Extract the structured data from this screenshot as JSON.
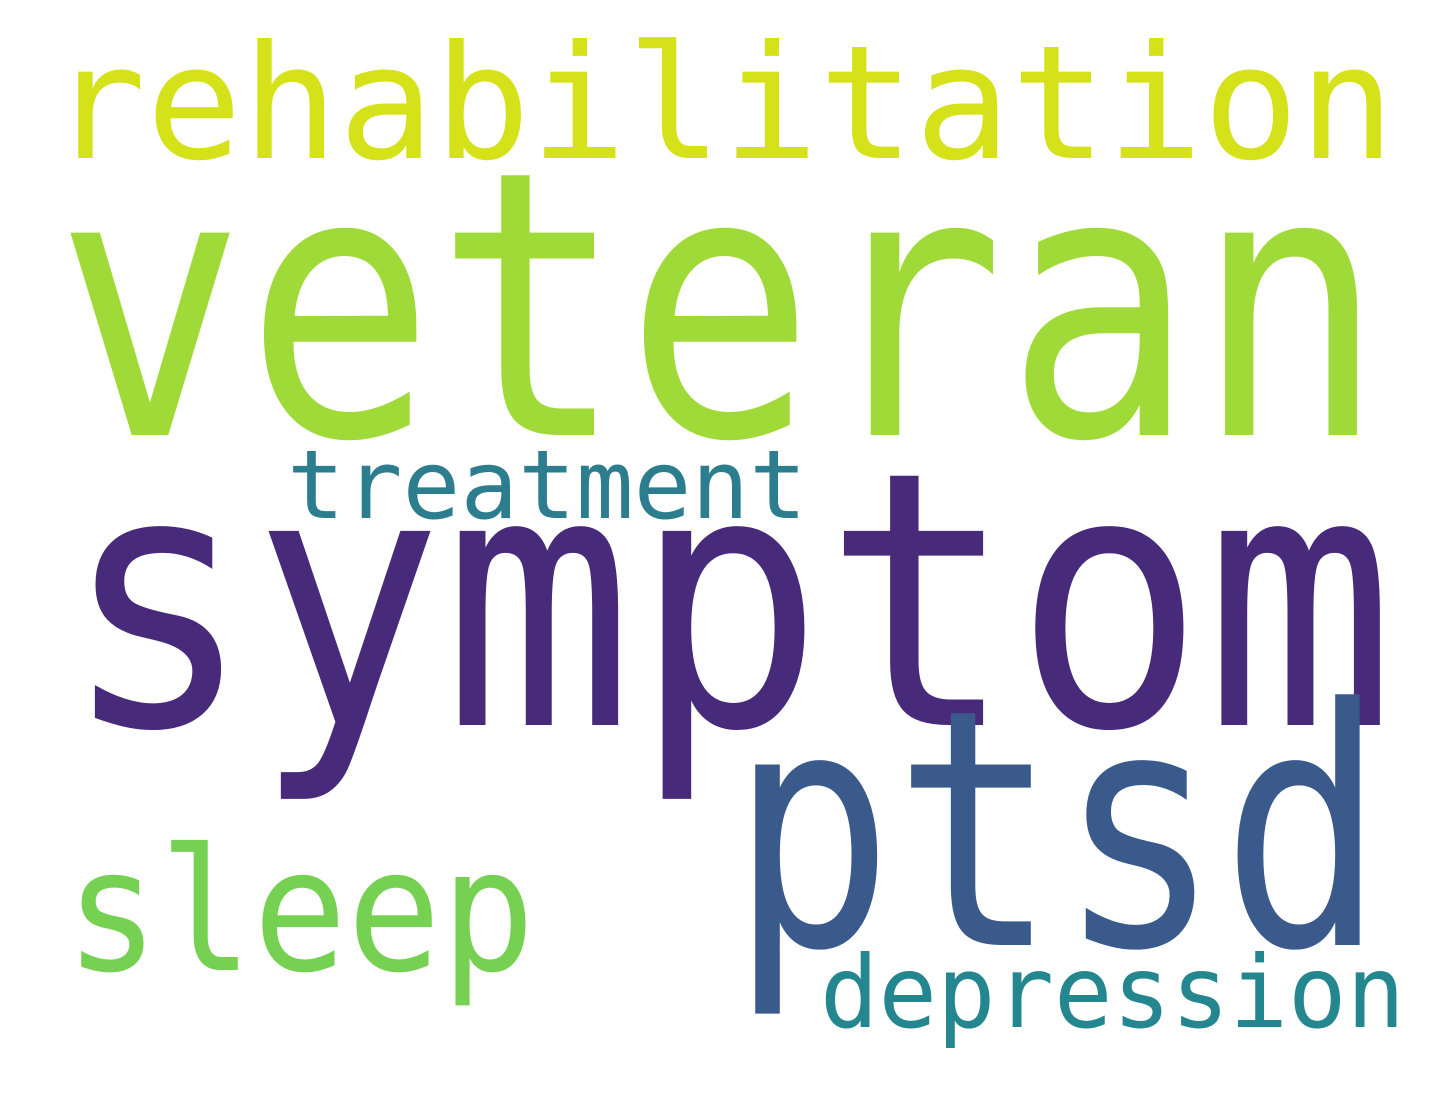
{
  "words": [
    {
      "key": "symptom",
      "text": "symptom",
      "color": "#472b7a"
    },
    {
      "key": "veteran",
      "text": "veteran",
      "color": "#a0da39"
    },
    {
      "key": "ptsd",
      "text": "ptsd",
      "color": "#3b5a8c"
    },
    {
      "key": "rehabilitation",
      "text": "rehabilitation",
      "color": "#d5e21a"
    },
    {
      "key": "sleep",
      "text": "sleep",
      "color": "#76d153"
    },
    {
      "key": "treatment",
      "text": "treatment",
      "color": "#2c7d8e"
    },
    {
      "key": "depression",
      "text": "depression",
      "color": "#24868e"
    }
  ]
}
